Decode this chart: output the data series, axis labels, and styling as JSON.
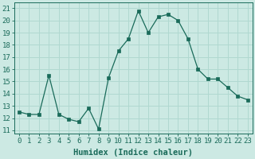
{
  "x": [
    0,
    1,
    2,
    3,
    4,
    5,
    6,
    7,
    8,
    9,
    10,
    11,
    12,
    13,
    14,
    15,
    16,
    17,
    18,
    19,
    20,
    21,
    22,
    23
  ],
  "y": [
    12.5,
    12.3,
    12.3,
    15.5,
    12.3,
    11.9,
    11.7,
    12.8,
    11.1,
    15.3,
    17.5,
    18.5,
    20.8,
    19.0,
    20.3,
    20.5,
    20.0,
    18.5,
    16.0,
    15.2,
    15.2,
    14.5,
    13.8,
    13.5
  ],
  "line_color": "#1a6b5a",
  "marker": "s",
  "marker_size": 2.5,
  "bg_color": "#cce9e3",
  "grid_color": "#b0d8d0",
  "xlabel": "Humidex (Indice chaleur)",
  "ylabel_ticks": [
    11,
    12,
    13,
    14,
    15,
    16,
    17,
    18,
    19,
    20,
    21
  ],
  "ylim": [
    10.7,
    21.5
  ],
  "xlim": [
    -0.5,
    23.5
  ],
  "tick_color": "#1a6b5a",
  "label_color": "#1a6b5a",
  "xlabel_fontsize": 7.5,
  "tick_fontsize": 6.5
}
